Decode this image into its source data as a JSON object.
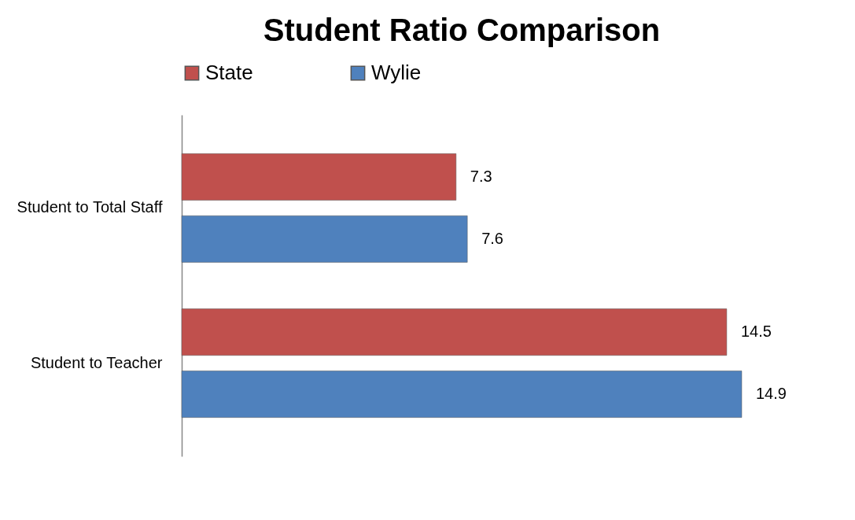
{
  "chart_data": {
    "type": "bar",
    "orientation": "horizontal",
    "title": "Student Ratio Comparison",
    "categories": [
      "Student to Total Staff",
      "Student to Teacher"
    ],
    "series": [
      {
        "name": "State",
        "color": "#c0504d",
        "values": [
          7.3,
          14.5
        ]
      },
      {
        "name": "Wylie",
        "color": "#4f81bd",
        "values": [
          7.6,
          14.9
        ]
      }
    ],
    "data_labels": true,
    "legend": "top",
    "grid": false
  }
}
